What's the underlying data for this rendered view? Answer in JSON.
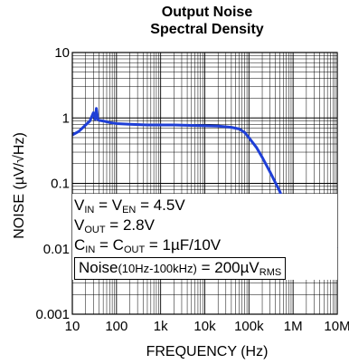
{
  "chart_data": {
    "type": "line",
    "title_lines": [
      "Output Noise",
      "Spectral Density"
    ],
    "xlabel": "FREQUENCY (Hz)",
    "ylabel": "NOISE (µV/√Hz)",
    "xscale": "log",
    "yscale": "log",
    "xlim": [
      10,
      10000000
    ],
    "ylim": [
      0.001,
      10
    ],
    "grid": true,
    "x_tick_labels": [
      "10",
      "100",
      "1k",
      "10k",
      "100k",
      "1M",
      "10M"
    ],
    "y_tick_labels": [
      "10",
      "1",
      "0.1",
      "0.01",
      "0.001"
    ],
    "line_color": "#1f3fd6",
    "series": [
      {
        "x": [
          10,
          14,
          20,
          25,
          30,
          33,
          35,
          38,
          40,
          50,
          70,
          100,
          200,
          500,
          1000,
          2000,
          5000,
          10000,
          20000,
          40000,
          60000,
          80000,
          100000,
          150000,
          200000,
          300000,
          500000,
          700000,
          1000000,
          1300000,
          1600000,
          2000000,
          2500000,
          3000000,
          4000000,
          6000000,
          8000000,
          10000000
        ],
        "y": [
          0.55,
          0.62,
          0.78,
          0.9,
          1.2,
          0.95,
          1.4,
          0.95,
          0.92,
          0.9,
          0.85,
          0.82,
          0.8,
          0.78,
          0.78,
          0.78,
          0.77,
          0.76,
          0.75,
          0.72,
          0.68,
          0.6,
          0.5,
          0.35,
          0.25,
          0.15,
          0.075,
          0.04,
          0.02,
          0.012,
          0.016,
          0.025,
          0.026,
          0.02,
          0.015,
          0.012,
          0.011,
          0.01
        ]
      }
    ]
  },
  "annotations": {
    "vin_pre": "V",
    "vin_sub": "IN",
    "veq": " = V",
    "ven_sub": "EN",
    "vin_val": " = 4.5V",
    "vout_pre": "V",
    "vout_sub": "OUT",
    "vout_val": " = 2.8V",
    "cin_pre": "C",
    "cin_sub": "IN",
    "ceq": " = C",
    "cout_sub": "OUT",
    "c_val": " = 1µF/10V",
    "noise_pre": "Noise",
    "noise_range": "(10Hz-100kHz)",
    "noise_val": " = 200µV",
    "noise_sub": "RMS"
  }
}
